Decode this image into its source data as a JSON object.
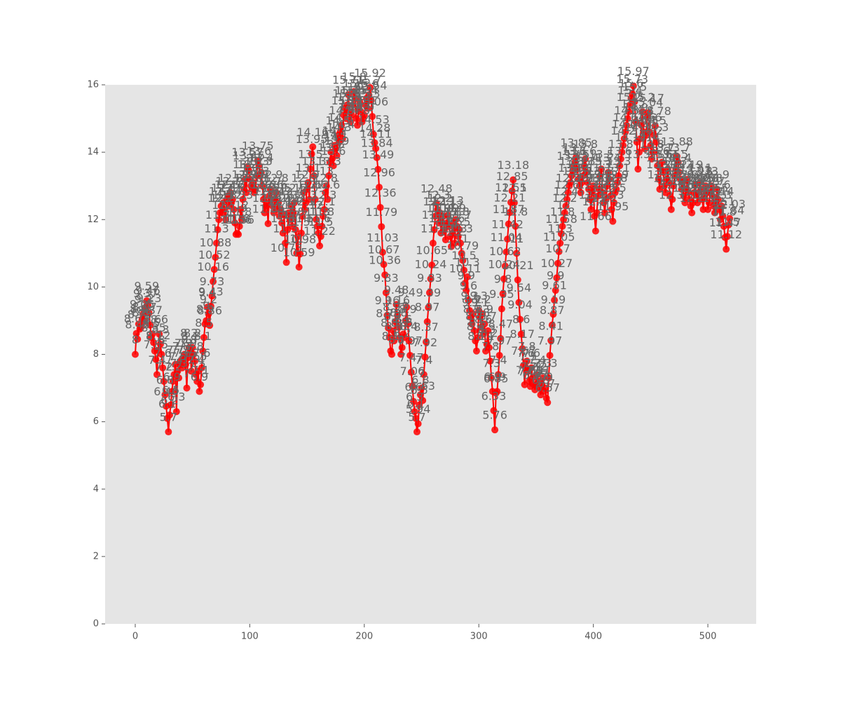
{
  "chart_data": {
    "type": "line",
    "color": "#ff0000",
    "label_color": "#666666",
    "grid": false,
    "xlim": [
      -26.3,
      542.2
    ],
    "ylim": [
      0,
      16
    ],
    "xticks": [
      0,
      100,
      200,
      300,
      400,
      500
    ],
    "yticks": [
      0,
      2,
      4,
      6,
      8,
      10,
      12,
      14,
      16
    ],
    "x": [
      0,
      1,
      2,
      3,
      4,
      5,
      6,
      7,
      8,
      9,
      10,
      11,
      12,
      13,
      14,
      15,
      16,
      17,
      18,
      19,
      20,
      21,
      22,
      23,
      24,
      25,
      26,
      27,
      28,
      29,
      30,
      31,
      32,
      33,
      34,
      35,
      36,
      37,
      38,
      39,
      40,
      41,
      42,
      43,
      44,
      45,
      46,
      47,
      48,
      49,
      50,
      51,
      52,
      53,
      54,
      55,
      56,
      57,
      58,
      59,
      60,
      61,
      62,
      63,
      64,
      65,
      66,
      67,
      68,
      69,
      70,
      71,
      72,
      73,
      74,
      75,
      76,
      77,
      78,
      79,
      80,
      81,
      82,
      83,
      84,
      85,
      86,
      87,
      88,
      89,
      90,
      91,
      92,
      93,
      94,
      95,
      96,
      97,
      98,
      99,
      100,
      101,
      102,
      103,
      104,
      105,
      106,
      107,
      108,
      109,
      110,
      111,
      112,
      113,
      114,
      115,
      116,
      117,
      118,
      119,
      120,
      121,
      122,
      123,
      124,
      125,
      126,
      127,
      128,
      129,
      130,
      131,
      132,
      133,
      134,
      135,
      136,
      137,
      138,
      139,
      140,
      141,
      142,
      143,
      144,
      145,
      146,
      147,
      148,
      149,
      150,
      151,
      152,
      153,
      154,
      155,
      156,
      157,
      158,
      159,
      160,
      161,
      162,
      163,
      164,
      165,
      166,
      167,
      168,
      169,
      170,
      171,
      172,
      173,
      174,
      175,
      176,
      177,
      178,
      179,
      180,
      181,
      182,
      183,
      184,
      185,
      186,
      187,
      188,
      189,
      190,
      191,
      192,
      193,
      194,
      195,
      196,
      197,
      198,
      199,
      200,
      201,
      202,
      203,
      204,
      205,
      206,
      207,
      208,
      209,
      210,
      211,
      212,
      213,
      214,
      215,
      216,
      217,
      218,
      219,
      220,
      221,
      222,
      223,
      224,
      225,
      226,
      227,
      228,
      229,
      230,
      231,
      232,
      233,
      234,
      235,
      236,
      237,
      238,
      239,
      240,
      241,
      242,
      243,
      244,
      245,
      246,
      247,
      248,
      249,
      250,
      251,
      252,
      253,
      254,
      255,
      256,
      257,
      258,
      259,
      260,
      261,
      262,
      263,
      264,
      265,
      266,
      267,
      268,
      269,
      270,
      271,
      272,
      273,
      274,
      275,
      276,
      277,
      278,
      279,
      280,
      281,
      282,
      283,
      284,
      285,
      286,
      287,
      288,
      289,
      290,
      291,
      292,
      293,
      294,
      295,
      296,
      297,
      298,
      299,
      300,
      301,
      302,
      303,
      304,
      305,
      306,
      307,
      308,
      309,
      310,
      311,
      312,
      313,
      314,
      315,
      316,
      317,
      318,
      319,
      320,
      321,
      322,
      323,
      324,
      325,
      326,
      327,
      328,
      329,
      330,
      331,
      332,
      333,
      334,
      335,
      336,
      337,
      338,
      339,
      340,
      341,
      342,
      343,
      344,
      345,
      346,
      347,
      348,
      349,
      350,
      351,
      352,
      353,
      354,
      355,
      356,
      357,
      358,
      359,
      360,
      361,
      362,
      363,
      364,
      365,
      366,
      367,
      368,
      369,
      370,
      371,
      372,
      373,
      374,
      375,
      376,
      377,
      378,
      379,
      380,
      381,
      382,
      383,
      384,
      385,
      386,
      387,
      388,
      389,
      390,
      391,
      392,
      393,
      394,
      395,
      396,
      397,
      398,
      399,
      400,
      401,
      402,
      403,
      404,
      405,
      406,
      407,
      408,
      409,
      410,
      411,
      412,
      413,
      414,
      415,
      416,
      417,
      418,
      419,
      420,
      421,
      422,
      423,
      424,
      425,
      426,
      427,
      428,
      429,
      430,
      431,
      432,
      433,
      434,
      435,
      436,
      437,
      438,
      439,
      440,
      441,
      442,
      443,
      444,
      445,
      446,
      447,
      448,
      449,
      450,
      451,
      452,
      453,
      454,
      455,
      456,
      457,
      458,
      459,
      460,
      461,
      462,
      463,
      464,
      465,
      466,
      467,
      468,
      469,
      470,
      471,
      472,
      473,
      474,
      475,
      476,
      477,
      478,
      479,
      480,
      481,
      482,
      483,
      484,
      485,
      486,
      487,
      488,
      489,
      490,
      491,
      492,
      493,
      494,
      495,
      496,
      497,
      498,
      499,
      500,
      501,
      502,
      503,
      504,
      505,
      506,
      507,
      508,
      509,
      510,
      511,
      512,
      513,
      514,
      515,
      516,
      517,
      518,
      519
    ],
    "values": [
      8.0,
      8.62,
      8.45,
      8.9,
      8.75,
      8.8,
      9.05,
      9.2,
      8.97,
      9.37,
      9.59,
      9.46,
      9.23,
      8.87,
      8.5,
      8.6,
      8.35,
      8.1,
      7.85,
      7.4,
      8.12,
      8.6,
      8.3,
      8.0,
      7.6,
      7.2,
      6.8,
      6.46,
      6.1,
      5.7,
      6.2,
      6.5,
      6.9,
      7.2,
      7.4,
      7.7,
      6.3,
      7.5,
      7.3,
      7.7,
      7.8,
      7.6,
      7.9,
      8.0,
      7.7,
      7.0,
      7.9,
      8.2,
      8.1,
      7.5,
      8.2,
      8.0,
      7.8,
      7.4,
      7.2,
      7.5,
      6.9,
      7.1,
      7.6,
      8.1,
      8.5,
      8.9,
      9.0,
      9.4,
      9.2,
      8.86,
      9.43,
      9.73,
      10.16,
      10.52,
      10.88,
      11.3,
      11.7,
      12.0,
      12.2,
      12.4,
      12.2,
      12.5,
      12.3,
      12.0,
      12.6,
      12.7,
      12.4,
      12.8,
      12.5,
      12.6,
      12.3,
      11.9,
      11.56,
      11.6,
      11.56,
      11.8,
      12.3,
      12.0,
      12.6,
      12.9,
      13.2,
      12.8,
      13.57,
      13.46,
      13.2,
      13.0,
      12.9,
      13.1,
      12.8,
      12.9,
      13.3,
      13.75,
      13.6,
      13.3,
      13.4,
      13.0,
      12.6,
      12.2,
      12.4,
      12.5,
      11.88,
      12.7,
      12.9,
      12.6,
      12.4,
      12.2,
      12.6,
      12.8,
      12.3,
      12.5,
      12.1,
      12.3,
      11.9,
      11.6,
      12.14,
      11.3,
      10.73,
      11.7,
      12.2,
      12.0,
      12.4,
      11.8,
      12.2,
      12.5,
      11.7,
      11.0,
      11.5,
      10.59,
      10.98,
      11.6,
      12.1,
      12.8,
      12.3,
      12.5,
      12.9,
      13.1,
      12.6,
      13.5,
      13.95,
      14.16,
      13.3,
      12.6,
      12.0,
      11.8,
      11.6,
      11.22,
      11.5,
      11.8,
      12.1,
      12.3,
      12.8,
      13.0,
      12.6,
      13.3,
      13.7,
      14.0,
      13.8,
      13.6,
      14.2,
      14.1,
      13.9,
      14.5,
      14.3,
      14.6,
      14.8,
      14.4,
      15.1,
      15.3,
      15.0,
      15.4,
      15.71,
      15.2,
      14.9,
      15.1,
      15.4,
      15.8,
      15.6,
      15.0,
      14.8,
      15.3,
      15.5,
      15.2,
      14.9,
      15.0,
      15.1,
      15.4,
      15.6,
      15.3,
      15.7,
      15.92,
      15.54,
      15.06,
      14.53,
      14.28,
      14.11,
      13.84,
      13.49,
      12.96,
      12.36,
      11.79,
      11.03,
      10.67,
      10.36,
      9.83,
      9.16,
      8.78,
      8.5,
      8.1,
      8.0,
      8.7,
      8.4,
      8.97,
      9.48,
      9.16,
      8.8,
      8.5,
      8.0,
      8.2,
      8.6,
      8.5,
      9.0,
      9.4,
      8.9,
      8.4,
      7.97,
      7.47,
      7.06,
      6.6,
      6.3,
      6.1,
      5.7,
      5.94,
      6.5,
      6.8,
      7.0,
      6.63,
      7.4,
      7.92,
      8.37,
      8.97,
      9.39,
      9.83,
      10.24,
      10.65,
      11.3,
      11.7,
      12.1,
      12.48,
      12.3,
      11.9,
      12.2,
      11.6,
      11.9,
      12.1,
      11.7,
      11.4,
      11.9,
      12.13,
      11.8,
      11.5,
      11.2,
      11.6,
      11.9,
      11.3,
      12.0,
      11.8,
      11.5,
      11.7,
      11.3,
      11.0,
      10.79,
      10.5,
      10.11,
      9.9,
      10.3,
      9.6,
      9.3,
      9.1,
      8.9,
      9.2,
      8.7,
      8.4,
      8.1,
      8.5,
      9.3,
      9.1,
      8.8,
      9.2,
      8.6,
      8.9,
      8.1,
      8.3,
      8.7,
      8.2,
      7.8,
      7.3,
      6.9,
      6.33,
      5.76,
      6.85,
      6.9,
      7.4,
      7.97,
      8.47,
      9.35,
      9.8,
      10.24,
      10.62,
      11.04,
      11.42,
      11.87,
      12.21,
      12.51,
      12.85,
      13.18,
      12.5,
      11.8,
      11.0,
      10.21,
      9.54,
      9.04,
      8.6,
      8.17,
      7.67,
      7.1,
      7.6,
      7.8,
      7.5,
      7.2,
      7.05,
      7.6,
      7.3,
      7.1,
      6.95,
      7.1,
      7.4,
      7.2,
      7.0,
      6.8,
      7.1,
      7.3,
      6.9,
      7.0,
      6.7,
      6.57,
      7.3,
      7.97,
      8.41,
      8.87,
      9.19,
      9.61,
      9.9,
      10.27,
      10.7,
      11.05,
      11.3,
      11.58,
      11.8,
      12.0,
      12.2,
      12.4,
      12.6,
      12.8,
      13.0,
      13.1,
      13.3,
      13.45,
      13.6,
      13.7,
      13.85,
      13.5,
      13.2,
      13.0,
      12.8,
      13.1,
      13.3,
      13.6,
      13.8,
      13.4,
      13.1,
      12.9,
      12.6,
      12.3,
      12.8,
      13.0,
      12.1,
      11.66,
      12.2,
      12.7,
      12.9,
      13.3,
      13.5,
      12.8,
      12.5,
      12.2,
      12.6,
      13.0,
      13.4,
      13.2,
      12.7,
      12.3,
      11.95,
      12.5,
      12.8,
      12.9,
      13.1,
      13.3,
      13.6,
      13.8,
      14.0,
      14.2,
      14.4,
      14.6,
      14.8,
      15.0,
      15.2,
      15.4,
      15.6,
      15.73,
      15.97,
      15.5,
      14.9,
      14.3,
      13.5,
      14.0,
      14.4,
      14.8,
      15.2,
      14.6,
      14.1,
      14.5,
      15.04,
      15.17,
      14.6,
      14.2,
      13.8,
      14.0,
      14.5,
      14.78,
      14.3,
      13.6,
      13.2,
      12.9,
      13.5,
      13.7,
      13.4,
      13.0,
      12.8,
      13.2,
      13.5,
      13.1,
      12.7,
      12.3,
      12.6,
      13.0,
      13.3,
      13.5,
      13.88,
      13.7,
      13.4,
      13.2,
      12.9,
      13.1,
      12.7,
      12.5,
      12.9,
      13.19,
      12.8,
      12.6,
      12.4,
      12.2,
      12.5,
      12.8,
      13.03,
      12.74,
      12.5,
      12.8,
      13.1,
      12.9,
      12.6,
      12.3,
      12.7,
      13.0,
      12.8,
      12.3,
      12.5,
      12.8,
      13.0,
      12.7,
      12.4,
      12.2,
      12.5,
      12.9,
      12.6,
      12.3,
      12.0,
      12.4,
      12.1,
      11.8,
      11.47,
      11.12,
      11.5,
      11.84,
      12.03
    ]
  }
}
